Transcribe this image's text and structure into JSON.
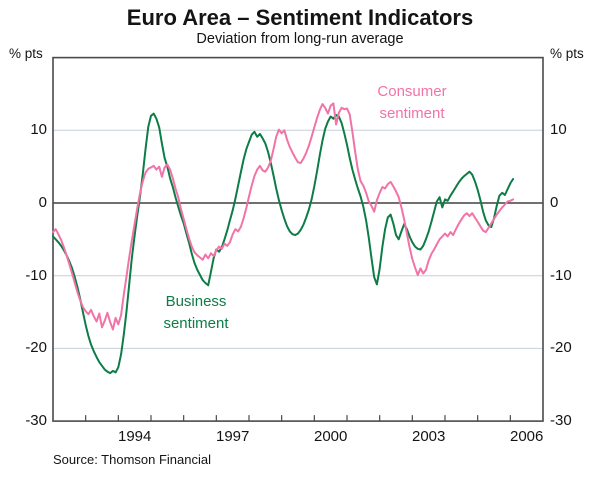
{
  "header": {
    "title": "Euro Area – Sentiment Indicators",
    "subtitle": "Deviation from long-run average"
  },
  "axes": {
    "left_unit": "% pts",
    "right_unit": "% pts",
    "y_ticks": [
      10,
      0,
      -10,
      -20,
      -30
    ],
    "x_ticks": [
      1994,
      1997,
      2000,
      2003,
      2006
    ]
  },
  "labels": {
    "consumer": [
      "Consumer",
      "sentiment"
    ],
    "business": [
      "Business",
      "sentiment"
    ]
  },
  "source": "Source: Thomson Financial",
  "colors": {
    "business_green": "#0e7c46",
    "consumer_pink": "#f173a7",
    "gridline": "#c6d0d8",
    "zero_line": "#1a1a1a",
    "frame": "#4a4a4c"
  },
  "chart_data": {
    "type": "line",
    "title": "Euro Area – Sentiment Indicators",
    "subtitle": "Deviation from long-run average",
    "ylabel": "% pts",
    "ylim": [
      -30,
      20
    ],
    "xlim": [
      1992,
      2007
    ],
    "grid": "horizontal",
    "gridlines_y": [
      10,
      -10,
      -20
    ],
    "zero_line": 0,
    "x_tick_years": [
      1994,
      1997,
      2000,
      2003,
      2006
    ],
    "minor_tick_years": [
      1993,
      1994,
      1995,
      1996,
      1997,
      1998,
      1999,
      2000,
      2001,
      2002,
      2003,
      2004,
      2005,
      2006
    ],
    "frequency": "monthly",
    "series": [
      {
        "name": "Business sentiment",
        "color": "#0e7c46",
        "start_year": 1992,
        "values": [
          -4.6,
          -5.0,
          -5.4,
          -5.9,
          -6.5,
          -7.2,
          -8.0,
          -9.0,
          -10.2,
          -11.6,
          -13.2,
          -15.0,
          -16.8,
          -18.3,
          -19.5,
          -20.4,
          -21.2,
          -21.9,
          -22.4,
          -22.9,
          -23.2,
          -23.4,
          -23.1,
          -23.3,
          -22.6,
          -20.8,
          -18.1,
          -14.9,
          -11.2,
          -7.5,
          -4.4,
          -1.6,
          1.0,
          4.0,
          7.5,
          10.5,
          12.0,
          12.3,
          11.6,
          10.4,
          8.2,
          6.2,
          5.0,
          3.4,
          2.2,
          0.8,
          -0.5,
          -1.7,
          -2.8,
          -4.2,
          -5.5,
          -7.0,
          -8.3,
          -9.2,
          -9.9,
          -10.6,
          -11.0,
          -11.3,
          -9.5,
          -7.6,
          -6.4,
          -6.7,
          -6.1,
          -5.0,
          -3.8,
          -2.4,
          -1.0,
          0.6,
          2.4,
          4.2,
          6.0,
          7.4,
          8.4,
          9.4,
          9.8,
          9.1,
          9.5,
          8.9,
          8.2,
          7.0,
          5.5,
          3.8,
          2.0,
          0.4,
          -1.0,
          -2.2,
          -3.2,
          -3.9,
          -4.3,
          -4.4,
          -4.2,
          -3.7,
          -3.0,
          -2.0,
          -0.9,
          0.5,
          2.3,
          4.4,
          6.6,
          8.6,
          10.2,
          11.2,
          11.9,
          11.6,
          12.1,
          11.9,
          11.0,
          9.6,
          8.0,
          6.2,
          4.6,
          3.2,
          2.0,
          0.9,
          -0.5,
          -2.4,
          -4.8,
          -7.6,
          -10.2,
          -11.2,
          -9.0,
          -6.0,
          -3.6,
          -2.0,
          -1.6,
          -2.8,
          -4.4,
          -5.0,
          -3.9,
          -2.9,
          -3.6,
          -4.6,
          -5.4,
          -6.0,
          -6.3,
          -6.4,
          -5.9,
          -5.0,
          -3.9,
          -2.6,
          -1.2,
          0.2,
          0.8,
          -0.6,
          0.5,
          0.3,
          1.0,
          1.6,
          2.2,
          2.8,
          3.3,
          3.7,
          4.0,
          4.3,
          3.9,
          3.0,
          1.8,
          0.4,
          -1.2,
          -2.4,
          -3.1,
          -3.3,
          -2.1,
          -0.4,
          1.0,
          1.4,
          1.1,
          1.9,
          2.7,
          3.3
        ]
      },
      {
        "name": "Consumer sentiment",
        "color": "#f173a7",
        "start_year": 1992,
        "values": [
          -4.0,
          -3.6,
          -4.3,
          -5.1,
          -6.1,
          -7.2,
          -8.4,
          -9.7,
          -11.0,
          -12.3,
          -13.4,
          -14.3,
          -14.9,
          -15.3,
          -14.7,
          -15.6,
          -16.3,
          -15.2,
          -17.1,
          -16.2,
          -15.1,
          -16.4,
          -17.4,
          -15.8,
          -16.7,
          -15.4,
          -12.6,
          -10.1,
          -7.5,
          -5.1,
          -2.8,
          -0.6,
          1.4,
          3.0,
          4.2,
          4.7,
          4.9,
          5.1,
          4.6,
          5.0,
          3.6,
          4.9,
          5.3,
          4.6,
          3.4,
          2.0,
          0.8,
          -0.8,
          -2.2,
          -3.6,
          -4.9,
          -6.0,
          -6.8,
          -7.2,
          -7.5,
          -7.8,
          -7.1,
          -7.6,
          -6.9,
          -7.3,
          -6.5,
          -6.0,
          -6.3,
          -5.6,
          -5.9,
          -5.4,
          -4.3,
          -3.6,
          -3.9,
          -3.3,
          -2.1,
          -0.7,
          0.9,
          2.4,
          3.7,
          4.6,
          5.1,
          4.5,
          4.3,
          4.9,
          5.8,
          7.4,
          9.1,
          10.1,
          9.6,
          10.0,
          8.7,
          7.7,
          6.9,
          6.2,
          5.6,
          5.5,
          6.1,
          6.9,
          7.9,
          9.1,
          10.4,
          11.7,
          12.8,
          13.6,
          13.1,
          12.3,
          13.4,
          13.7,
          10.8,
          12.4,
          13.1,
          12.9,
          13.0,
          12.2,
          9.8,
          7.0,
          4.6,
          3.0,
          2.4,
          1.4,
          0.2,
          -0.4,
          -1.2,
          0.4,
          1.4,
          2.2,
          2.0,
          2.6,
          2.9,
          2.3,
          1.6,
          0.8,
          -0.6,
          -2.3,
          -4.2,
          -6.1,
          -7.7,
          -8.9,
          -9.9,
          -9.0,
          -9.7,
          -9.2,
          -7.9,
          -7.0,
          -6.4,
          -5.7,
          -5.0,
          -4.6,
          -4.2,
          -4.6,
          -4.0,
          -4.4,
          -3.6,
          -2.9,
          -2.3,
          -1.7,
          -1.4,
          -1.8,
          -1.4,
          -2.0,
          -2.6,
          -3.2,
          -3.8,
          -4.0,
          -3.4,
          -2.8,
          -2.2,
          -1.6,
          -1.1,
          -0.6,
          -0.2,
          0.2,
          0.3,
          0.5
        ]
      }
    ]
  }
}
